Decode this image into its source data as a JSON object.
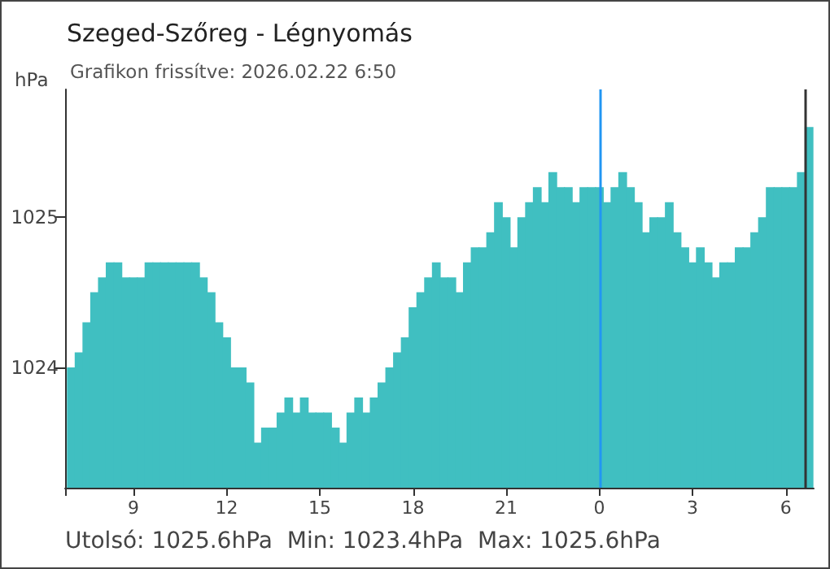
{
  "chart_data": {
    "type": "bar",
    "title": "Szeged-Szőreg - Légnyomás",
    "subtitle": "Grafikon frissítve: 2026.02.22 6:50",
    "ylabel": "hPa",
    "annotations": [
      "Utolsó: 1025.6hPa  Min: 1023.4hPa  Max: 1025.6hPa"
    ],
    "color": "#40bfc1",
    "grid": false,
    "x": [
      "2026-02-21T07:00",
      "2026-02-21T07:15",
      "2026-02-21T07:30",
      "2026-02-21T07:45",
      "2026-02-21T08:00",
      "2026-02-21T08:15",
      "2026-02-21T08:30",
      "2026-02-21T08:45",
      "2026-02-21T09:00",
      "2026-02-21T09:15",
      "2026-02-21T09:30",
      "2026-02-21T09:45",
      "2026-02-21T10:00",
      "2026-02-21T10:15",
      "2026-02-21T10:30",
      "2026-02-21T10:45",
      "2026-02-21T11:00",
      "2026-02-21T11:15",
      "2026-02-21T11:30",
      "2026-02-21T11:45",
      "2026-02-21T12:00",
      "2026-02-21T12:15",
      "2026-02-21T12:30",
      "2026-02-21T12:45",
      "2026-02-21T13:00",
      "2026-02-21T13:15",
      "2026-02-21T13:30",
      "2026-02-21T13:45",
      "2026-02-21T14:00",
      "2026-02-21T14:15",
      "2026-02-21T14:30",
      "2026-02-21T14:45",
      "2026-02-21T15:00",
      "2026-02-21T15:15",
      "2026-02-21T15:30",
      "2026-02-21T15:45",
      "2026-02-21T16:00",
      "2026-02-21T16:15",
      "2026-02-21T16:30",
      "2026-02-21T16:45",
      "2026-02-21T17:00",
      "2026-02-21T17:15",
      "2026-02-21T17:30",
      "2026-02-21T17:45",
      "2026-02-21T18:00",
      "2026-02-21T18:15",
      "2026-02-21T18:30",
      "2026-02-21T18:45",
      "2026-02-21T19:00",
      "2026-02-21T19:15",
      "2026-02-21T19:30",
      "2026-02-21T19:45",
      "2026-02-21T20:00",
      "2026-02-21T20:15",
      "2026-02-21T20:30",
      "2026-02-21T20:45",
      "2026-02-21T21:00",
      "2026-02-21T21:15",
      "2026-02-21T21:30",
      "2026-02-21T21:45",
      "2026-02-21T22:00",
      "2026-02-21T22:15",
      "2026-02-21T22:30",
      "2026-02-21T22:45",
      "2026-02-21T23:00",
      "2026-02-21T23:15",
      "2026-02-21T23:30",
      "2026-02-21T23:45",
      "2026-02-22T00:00",
      "2026-02-22T00:15",
      "2026-02-22T00:30",
      "2026-02-22T00:45",
      "2026-02-22T01:00",
      "2026-02-22T01:15",
      "2026-02-22T01:30",
      "2026-02-22T01:45",
      "2026-02-22T02:00",
      "2026-02-22T02:15",
      "2026-02-22T02:30",
      "2026-02-22T02:45",
      "2026-02-22T03:00",
      "2026-02-22T03:15",
      "2026-02-22T03:30",
      "2026-02-22T03:45",
      "2026-02-22T04:00",
      "2026-02-22T04:15",
      "2026-02-22T04:30",
      "2026-02-22T04:45",
      "2026-02-22T05:00",
      "2026-02-22T05:15",
      "2026-02-22T05:30",
      "2026-02-22T05:45",
      "2026-02-22T06:00",
      "2026-02-22T06:15",
      "2026-02-22T06:30",
      "2026-02-22T06:45"
    ],
    "values": [
      1024.0,
      1024.1,
      1024.3,
      1024.5,
      1024.6,
      1024.7,
      1024.7,
      1024.6,
      1024.6,
      1024.6,
      1024.7,
      1024.7,
      1024.7,
      1024.7,
      1024.7,
      1024.7,
      1024.7,
      1024.6,
      1024.5,
      1024.3,
      1024.2,
      1024.0,
      1024.0,
      1023.9,
      1023.5,
      1023.6,
      1023.6,
      1023.7,
      1023.8,
      1023.7,
      1023.8,
      1023.7,
      1023.7,
      1023.7,
      1023.6,
      1023.5,
      1023.7,
      1023.8,
      1023.7,
      1023.8,
      1023.9,
      1024.0,
      1024.1,
      1024.2,
      1024.4,
      1024.5,
      1024.6,
      1024.7,
      1024.6,
      1024.6,
      1024.5,
      1024.7,
      1024.8,
      1024.8,
      1024.9,
      1025.1,
      1025.0,
      1024.8,
      1025.0,
      1025.1,
      1025.2,
      1025.1,
      1025.3,
      1025.2,
      1025.2,
      1025.1,
      1025.2,
      1025.2,
      1025.2,
      1025.1,
      1025.2,
      1025.3,
      1025.2,
      1025.1,
      1024.9,
      1025.0,
      1025.0,
      1025.1,
      1024.9,
      1024.8,
      1024.7,
      1024.8,
      1024.7,
      1024.6,
      1024.7,
      1024.7,
      1024.8,
      1024.8,
      1024.9,
      1025.0,
      1025.2,
      1025.2,
      1025.2,
      1025.2,
      1025.3,
      1025.6
    ],
    "xlim": [
      "2026-02-21T06:48",
      "2026-02-22T06:54"
    ],
    "xticks": [
      {
        "value": "2026-02-21T06:48",
        "label": null
      },
      {
        "value": "2026-02-21T09:00",
        "label": "9"
      },
      {
        "value": "2026-02-21T12:00",
        "label": "12"
      },
      {
        "value": "2026-02-21T15:00",
        "label": "15"
      },
      {
        "value": "2026-02-21T18:00",
        "label": "18"
      },
      {
        "value": "2026-02-21T21:00",
        "label": "21"
      },
      {
        "value": "2026-02-22T00:00",
        "label": "0"
      },
      {
        "value": "2026-02-22T03:00",
        "label": "3"
      },
      {
        "value": "2026-02-22T06:00",
        "label": "6"
      }
    ],
    "ylim": [
      1023.2,
      1025.85
    ],
    "yticks": [
      1024,
      1025
    ],
    "ref_lines": [
      {
        "axis": "x",
        "value": "2026-02-22T00:00",
        "color": "#2196f3"
      },
      {
        "axis": "x",
        "value": "2026-02-22T06:36",
        "color": "#333333"
      }
    ]
  }
}
